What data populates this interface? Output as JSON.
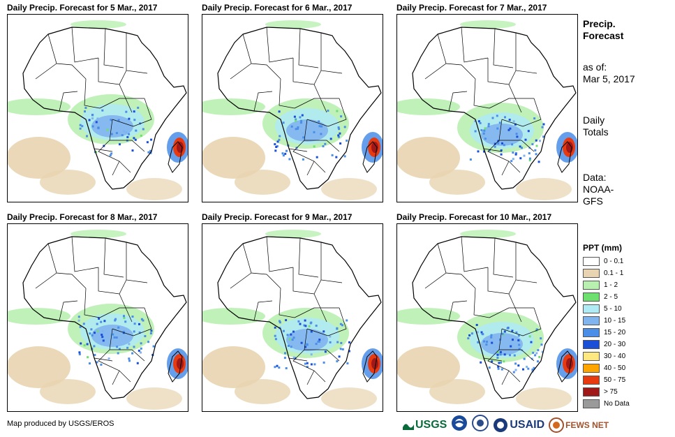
{
  "panels": [
    {
      "title": "Daily Precip. Forecast for 5 Mar., 2017",
      "intensity": 0.55,
      "pattern": 0
    },
    {
      "title": "Daily Precip. Forecast for 6 Mar., 2017",
      "intensity": 0.6,
      "pattern": 1
    },
    {
      "title": "Daily Precip. Forecast for 7 Mar., 2017",
      "intensity": 0.7,
      "pattern": 2
    },
    {
      "title": "Daily Precip. Forecast for 8 Mar., 2017",
      "intensity": 0.75,
      "pattern": 3
    },
    {
      "title": "Daily Precip. Forecast for 9 Mar., 2017",
      "intensity": 0.75,
      "pattern": 4
    },
    {
      "title": "Daily Precip. Forecast for 10 Mar., 2017",
      "intensity": 0.8,
      "pattern": 5
    }
  ],
  "side": {
    "title_line1": "Precip.",
    "title_line2": "Forecast",
    "asof_label": "as of:",
    "asof_date": "Mar 5, 2017",
    "totals_line1": "Daily",
    "totals_line2": "Totals",
    "data_line1": "Data:",
    "data_line2": "NOAA-",
    "data_line3": "GFS"
  },
  "legend": {
    "title": "PPT (mm)",
    "items": [
      {
        "label": "0 - 0.1",
        "color": "#ffffff"
      },
      {
        "label": "0.1 - 1",
        "color": "#e8d4b0"
      },
      {
        "label": "1 - 2",
        "color": "#b8f0b0"
      },
      {
        "label": "2 - 5",
        "color": "#6ee070"
      },
      {
        "label": "5 - 10",
        "color": "#b0eaf4"
      },
      {
        "label": "10 - 15",
        "color": "#7fb4ee"
      },
      {
        "label": "15 - 20",
        "color": "#4a8ee8"
      },
      {
        "label": "20 - 30",
        "color": "#1a50d8"
      },
      {
        "label": "30 - 40",
        "color": "#ffe880"
      },
      {
        "label": "40 - 50",
        "color": "#ffa500"
      },
      {
        "label": "50 - 75",
        "color": "#e83a10"
      },
      {
        "label": "> 75",
        "color": "#a01818"
      },
      {
        "label": "No Data",
        "color": "#9a9a9a"
      }
    ]
  },
  "footer": {
    "credit": "Map produced by USGS/EROS",
    "logo_usgs": "USGS",
    "logo_usaid": "USAID",
    "logo_fewsnet": "FEWS NET"
  }
}
